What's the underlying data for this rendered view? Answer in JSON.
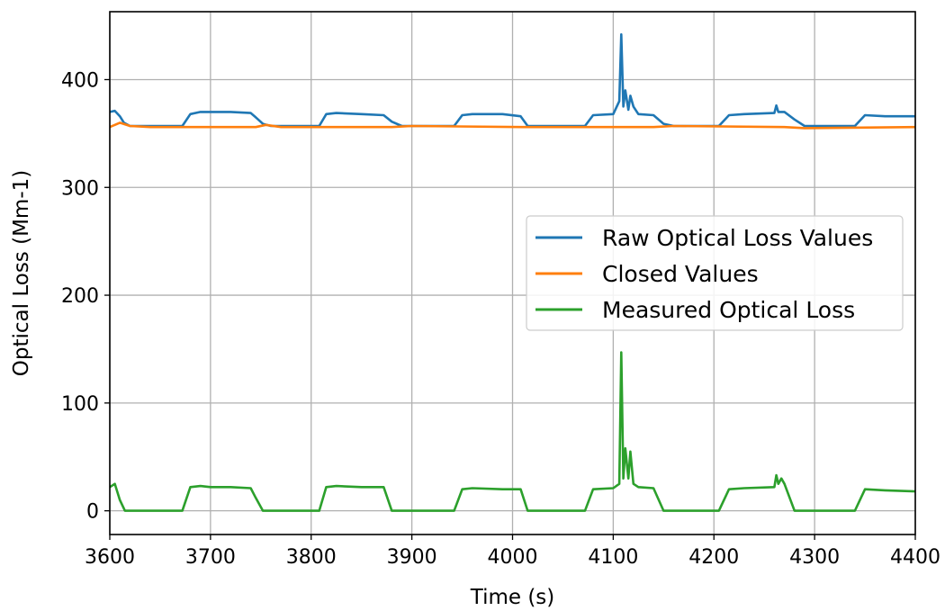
{
  "chart_data": {
    "type": "line",
    "title": "",
    "xlabel": "Time (s)",
    "ylabel": "Optical Loss (Mm-1)",
    "xlim": [
      3600,
      4400
    ],
    "ylim": [
      -22,
      463
    ],
    "x_ticks": [
      3600,
      3700,
      3800,
      3900,
      4000,
      4100,
      4200,
      4300,
      4400
    ],
    "y_ticks": [
      0,
      100,
      200,
      300,
      400
    ],
    "grid": true,
    "legend_position": "center-right",
    "series": [
      {
        "name": "Raw Optical Loss Values",
        "color": "#1f77b4",
        "x": [
          3600,
          3605,
          3610,
          3614,
          3620,
          3672,
          3680,
          3690,
          3700,
          3720,
          3740,
          3745,
          3752,
          3760,
          3800,
          3808,
          3815,
          3825,
          3850,
          3872,
          3880,
          3890,
          3900,
          3930,
          3942,
          3950,
          3960,
          3990,
          4008,
          4015,
          4030,
          4060,
          4072,
          4080,
          4100,
          4106,
          4108,
          4110,
          4112,
          4115,
          4117,
          4120,
          4125,
          4140,
          4150,
          4160,
          4200,
          4205,
          4215,
          4230,
          4260,
          4262,
          4264,
          4270,
          4280,
          4290,
          4330,
          4340,
          4350,
          4370,
          4400
        ],
        "y": [
          370,
          371,
          366,
          360,
          357,
          357,
          368,
          370,
          370,
          370,
          369,
          365,
          359,
          357,
          357,
          357,
          368,
          369,
          368,
          367,
          361,
          357,
          357,
          357,
          357,
          367,
          368,
          368,
          366,
          357,
          357,
          357,
          357,
          367,
          368,
          380,
          442,
          375,
          390,
          372,
          385,
          375,
          368,
          367,
          359,
          357,
          357,
          357,
          367,
          368,
          369,
          376,
          370,
          370,
          363,
          357,
          357,
          357,
          367,
          366,
          366
        ]
      },
      {
        "name": "Closed Values",
        "color": "#ff7f0e",
        "x": [
          3600,
          3610,
          3620,
          3640,
          3745,
          3755,
          3770,
          3850,
          3880,
          3900,
          4010,
          4030,
          4140,
          4160,
          4270,
          4290,
          4400
        ],
        "y": [
          356,
          360,
          357,
          356,
          356,
          358,
          356,
          356,
          356,
          357,
          356,
          356,
          356,
          357,
          356,
          355,
          356
        ]
      },
      {
        "name": "Measured Optical Loss",
        "color": "#2ca02c",
        "x": [
          3600,
          3605,
          3610,
          3615,
          3672,
          3680,
          3690,
          3700,
          3720,
          3740,
          3745,
          3752,
          3808,
          3815,
          3825,
          3850,
          3872,
          3880,
          3942,
          3950,
          3960,
          3990,
          4008,
          4015,
          4072,
          4080,
          4100,
          4106,
          4108,
          4110,
          4112,
          4115,
          4117,
          4120,
          4125,
          4140,
          4150,
          4205,
          4215,
          4230,
          4260,
          4262,
          4264,
          4267,
          4270,
          4280,
          4340,
          4350,
          4370,
          4400
        ],
        "y": [
          22,
          25,
          10,
          0,
          0,
          22,
          23,
          22,
          22,
          21,
          12,
          0,
          0,
          22,
          23,
          22,
          22,
          0,
          0,
          20,
          21,
          20,
          20,
          0,
          0,
          20,
          21,
          25,
          147,
          30,
          58,
          30,
          55,
          25,
          22,
          21,
          0,
          0,
          20,
          21,
          22,
          33,
          25,
          30,
          25,
          0,
          0,
          20,
          19,
          18
        ]
      }
    ]
  }
}
